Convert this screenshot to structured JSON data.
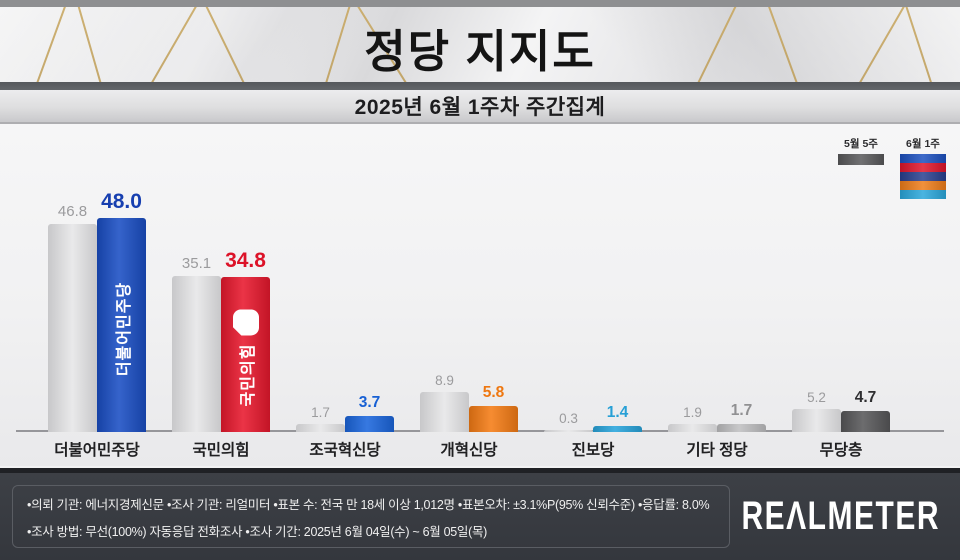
{
  "header": {
    "title": "정당 지지도",
    "subtitle": "2025년 6월 1주차 주간집계"
  },
  "legend": {
    "items": [
      {
        "label": "5월 5주",
        "colors": [
          "#58585a"
        ]
      },
      {
        "label": "6월 1주",
        "colors": [
          "#1c50c0",
          "#e0152b",
          "#283f8f",
          "#ef7d1a",
          "#2aa7db"
        ]
      }
    ]
  },
  "chart_data": {
    "type": "bar",
    "title": "정당 지지도",
    "subtitle": "2025년 6월 1주차 주간집계",
    "unit": "%",
    "ylim": [
      0,
      50
    ],
    "grid": false,
    "legend_position": "top-right",
    "categories": [
      "더불어민주당",
      "국민의힘",
      "조국혁신당",
      "개혁신당",
      "진보당",
      "기타 정당",
      "무당층"
    ],
    "series": [
      {
        "name": "5월 5주",
        "values": [
          46.8,
          35.1,
          1.7,
          8.9,
          0.3,
          1.9,
          5.2
        ]
      },
      {
        "name": "6월 1주",
        "values": [
          48.0,
          34.8,
          3.7,
          5.8,
          1.4,
          1.7,
          4.7
        ]
      }
    ],
    "value_labels": {
      "prev": [
        "46.8",
        "35.1",
        "1.7",
        "8.9",
        "0.3",
        "1.9",
        "5.2"
      ],
      "curr": [
        "48.0",
        "34.8",
        "3.7",
        "5.8",
        "1.4",
        "1.7",
        "4.7"
      ]
    },
    "prev_bar_color": "#d7d7d9",
    "current_bar_colors": [
      "#1a4ec4",
      "#e8182d",
      "#1b66dd",
      "#f57c15",
      "#29a5dc",
      "#c0c0c2",
      "#58585a"
    ],
    "prev_label_color": "#9b9b9d",
    "current_label_colors": [
      "#173fb0",
      "#dc1228",
      "#1760d4",
      "#ee7710",
      "#27a0d6",
      "#909092",
      "#2e2e30"
    ],
    "bar_logos": [
      "더불어민주당",
      "국민의힘",
      "",
      "",
      "",
      "",
      ""
    ]
  },
  "footer": {
    "line1": "•의뢰 기관: 에너지경제신문  •조사 기관: 리얼미터 •표본 수: 전국 만 18세 이상 1,012명 •표본오차: ±3.1%P(95% 신뢰수준) •응답률: 8.0%",
    "line2": "•조사 방법: 무선(100%) 자동응답 전화조사 •조사 기간: 2025년 6월 04일(수) ~ 6월 05일(목)",
    "logo": "REΛLMETER"
  }
}
